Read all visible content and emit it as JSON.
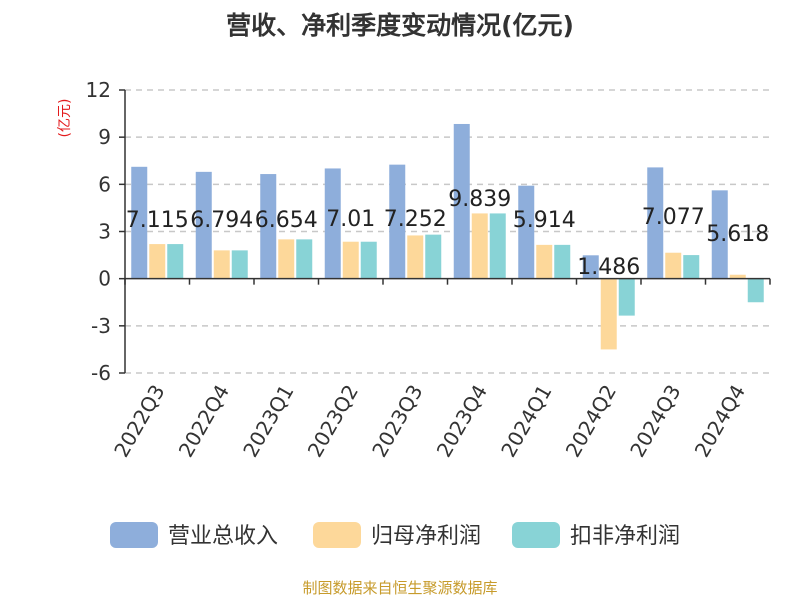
{
  "chart_data": {
    "type": "bar",
    "title": "营收、净利季度变动情况(亿元)",
    "unit_label": "(亿元)",
    "categories": [
      "2022Q3",
      "2022Q4",
      "2023Q1",
      "2023Q2",
      "2023Q3",
      "2023Q4",
      "2024Q1",
      "2024Q2",
      "2024Q3",
      "2024Q4"
    ],
    "series": [
      {
        "name": "营业总收入",
        "color": "#8eaedb",
        "values": [
          7.115,
          6.794,
          6.654,
          7.01,
          7.252,
          9.839,
          5.914,
          1.486,
          7.077,
          5.618
        ]
      },
      {
        "name": "归母净利润",
        "color": "#fdd89a",
        "values": [
          2.2,
          1.8,
          2.5,
          2.35,
          2.75,
          4.15,
          2.15,
          -4.5,
          1.65,
          0.25
        ]
      },
      {
        "name": "扣非净利润",
        "color": "#88d3d6",
        "values": [
          2.2,
          1.8,
          2.5,
          2.35,
          2.8,
          4.15,
          2.15,
          -2.35,
          1.5,
          -1.5
        ]
      }
    ],
    "data_labels": [
      "7.115",
      "6.794",
      "6.654",
      "7.01",
      "7.252",
      "9.839",
      "5.914",
      "1.486",
      "7.077",
      "5.618"
    ],
    "ylim": [
      -6,
      12
    ],
    "yticks": [
      -6,
      -3,
      0,
      3,
      6,
      9,
      12
    ],
    "grid": true,
    "legend_position": "bottom"
  },
  "source_text": "制图数据来自恒生聚源数据库"
}
